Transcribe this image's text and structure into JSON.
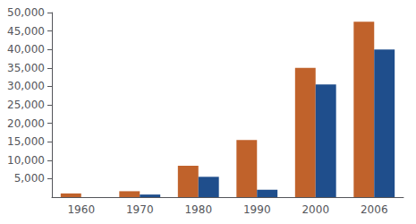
{
  "chart_data": {
    "type": "bar",
    "categories": [
      "1960",
      "1970",
      "1980",
      "1990",
      "2000",
      "2006"
    ],
    "series": [
      {
        "color": "#C0622B",
        "values": [
          1000,
          1600,
          8500,
          15500,
          35000,
          47500
        ]
      },
      {
        "color": "#1F4E8C",
        "values": [
          0,
          700,
          5500,
          2000,
          30500,
          40000
        ]
      }
    ],
    "ylim": [
      0,
      50000
    ],
    "yticks": [
      {
        "value": 5000,
        "label": "5,000"
      },
      {
        "value": 10000,
        "label": "10,000"
      },
      {
        "value": 15000,
        "label": "15,000"
      },
      {
        "value": 20000,
        "label": "20,000"
      },
      {
        "value": 25000,
        "label": "25,000"
      },
      {
        "value": 30000,
        "label": "30,000"
      },
      {
        "value": 35000,
        "label": "35,000"
      },
      {
        "value": 40000,
        "label": "40,000"
      },
      {
        "value": 45000,
        "label": "45,000"
      },
      {
        "value": 50000,
        "label": "50,000"
      }
    ],
    "grid": false
  }
}
